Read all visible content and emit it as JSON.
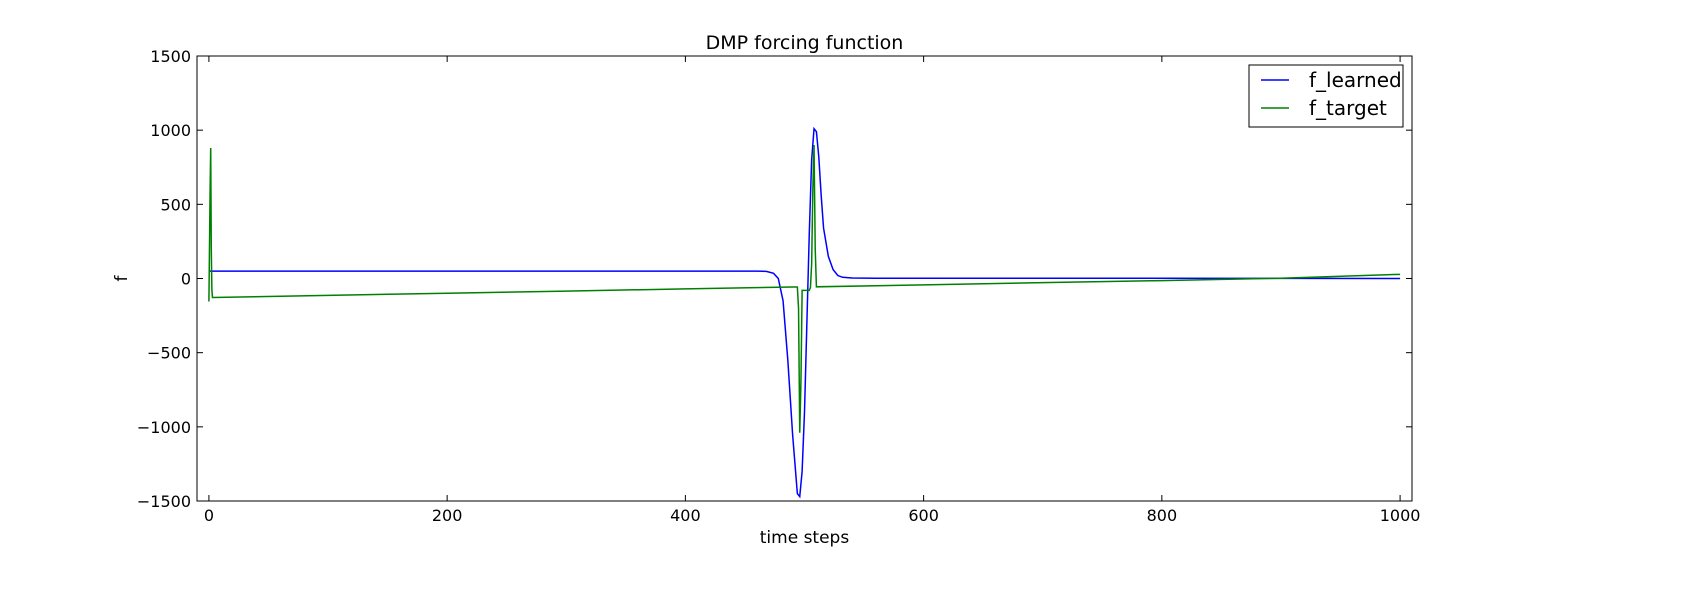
{
  "chart_data": {
    "type": "line",
    "title": "DMP forcing function",
    "xlabel": "time steps",
    "ylabel": "f",
    "xlim": [
      -10,
      1010
    ],
    "ylim": [
      -1500,
      1500
    ],
    "xticks": [
      0,
      200,
      400,
      600,
      800,
      1000
    ],
    "yticks": [
      -1500,
      -1000,
      -500,
      0,
      500,
      1000,
      1500
    ],
    "xtick_labels": [
      "0",
      "200",
      "400",
      "600",
      "800",
      "1000"
    ],
    "ytick_labels": [
      "−1500",
      "−1000",
      "−500",
      "0",
      "500",
      "1000",
      "1500"
    ],
    "legend_position": "top-right",
    "grid": false,
    "series": [
      {
        "name": "f_learned",
        "color": "#0000ff",
        "x": [
          0,
          100,
          200,
          300,
          400,
          460,
          468,
          474,
          478,
          482,
          486,
          490,
          494,
          496,
          498,
          500,
          502,
          504,
          506,
          508,
          510,
          512,
          514,
          516,
          520,
          524,
          528,
          532,
          540,
          560,
          600,
          700,
          800,
          900,
          1000
        ],
        "y": [
          50,
          50,
          50,
          50,
          50,
          50,
          48,
          35,
          0,
          -150,
          -550,
          -1050,
          -1450,
          -1470,
          -1300,
          -900,
          -300,
          300,
          800,
          1010,
          990,
          820,
          560,
          340,
          150,
          60,
          20,
          8,
          3,
          2,
          2,
          2,
          2,
          1,
          0
        ]
      },
      {
        "name": "f_target",
        "color": "#008000",
        "x": [
          0,
          1,
          1.5,
          2,
          2.5,
          3,
          100,
          200,
          300,
          400,
          490,
          494,
          495,
          496,
          497,
          498,
          500,
          502,
          504,
          505,
          506,
          507,
          508,
          509,
          510,
          600,
          700,
          800,
          900,
          1000
        ],
        "y": [
          -155,
          600,
          880,
          200,
          -80,
          -128,
          -114,
          -99,
          -85,
          -70,
          -57,
          -57,
          -200,
          -1040,
          -700,
          -80,
          -80,
          -80,
          -80,
          -60,
          100,
          600,
          900,
          200,
          -56,
          -43,
          -28,
          -14,
          2,
          28
        ]
      }
    ]
  }
}
